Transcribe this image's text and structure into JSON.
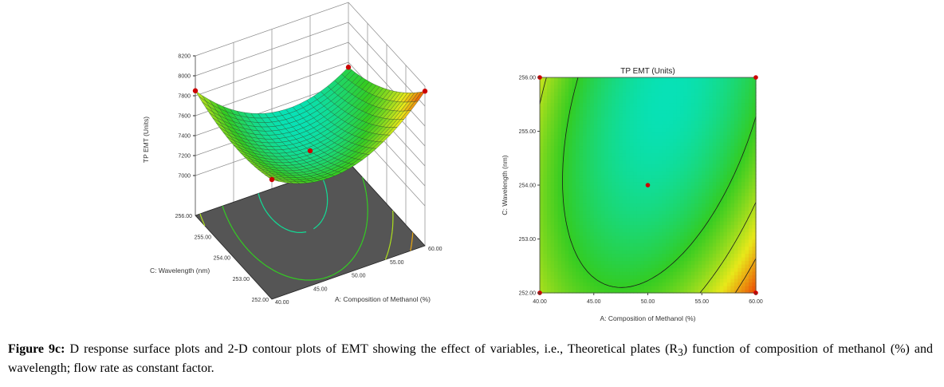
{
  "chart_data": [
    {
      "type": "surface",
      "zlabel": "TP EMT (Units)",
      "xlabel": "A: Composition of Methanol (%)",
      "ylabel": "C: Wavelength (nm)",
      "x_ticks": [
        "40.00",
        "45.00",
        "50.00",
        "55.00",
        "60.00"
      ],
      "y_ticks": [
        "252.00",
        "253.00",
        "254.00",
        "255.00",
        "256.00"
      ],
      "z_ticks": [
        "7000",
        "7200",
        "7400",
        "7600",
        "7800",
        "8000",
        "8200"
      ],
      "xlim": [
        40,
        60
      ],
      "ylim": [
        252,
        256
      ],
      "zlim": [
        7000,
        8200
      ],
      "grid": true,
      "design_points": [
        {
          "a": 40,
          "c": 252,
          "z": 7800
        },
        {
          "a": 40,
          "c": 256,
          "z": 7850
        },
        {
          "a": 60,
          "c": 256,
          "z": 7550
        },
        {
          "a": 60,
          "c": 252,
          "z": 8150
        },
        {
          "a": 50,
          "c": 254,
          "z": 7400
        }
      ],
      "colors": {
        "low": "#00e5d0",
        "mid": "#33cc22",
        "high_mid": "#e8e81a",
        "high": "#ee2200",
        "floor": "#555555",
        "point": "#cc0000"
      }
    },
    {
      "type": "contour",
      "title": "TP EMT (Units)",
      "xlabel": "A: Composition of Methanol (%)",
      "ylabel": "C: Wavelength (nm)",
      "x_ticks": [
        "40.00",
        "45.00",
        "50.00",
        "55.00",
        "60.00"
      ],
      "y_ticks": [
        "252.00",
        "253.00",
        "254.00",
        "255.00",
        "256.00"
      ],
      "xlim": [
        40,
        60
      ],
      "ylim": [
        252,
        256
      ],
      "contour_levels": [
        7600,
        7800,
        8000
      ],
      "design_points": [
        {
          "a": 40,
          "c": 252
        },
        {
          "a": 40,
          "c": 256
        },
        {
          "a": 60,
          "c": 256
        },
        {
          "a": 60,
          "c": 252
        },
        {
          "a": 50,
          "c": 254
        }
      ]
    }
  ],
  "caption": {
    "label": "Figure 9c:",
    "text": " D response surface plots and 2-D contour plots of EMT showing the effect of variables, i.e., Theoretical plates (R",
    "subscript": "3",
    "text_end": ") function of composition of methanol (%) and wavelength; flow rate as constant factor."
  }
}
